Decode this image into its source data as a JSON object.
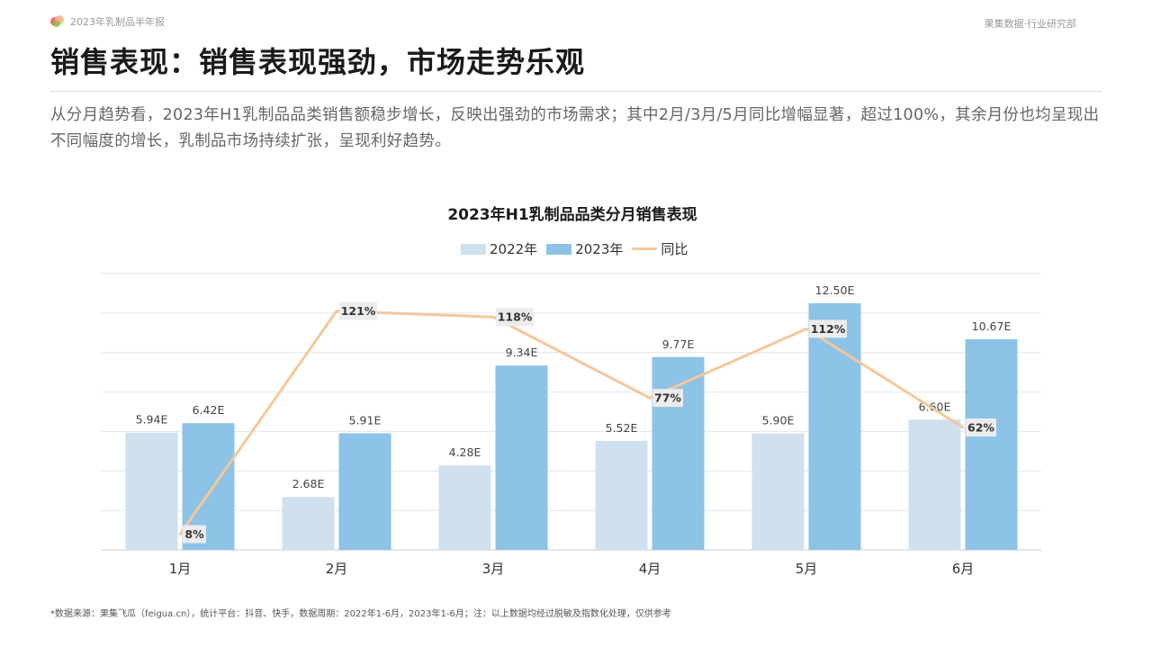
{
  "header": {
    "report_name": "2023年乳制品半年报",
    "org": "果集数据·行业研究部",
    "headline": "销售表现：销售表现强劲，市场走势乐观",
    "description": "从分月趋势看，2023年H1乳制品品类销售额稳步增长，反映出强劲的市场需求；其中2月/3月/5月同比增幅显著，超过100%，其余月份也均呈现出不同幅度的增长，乳制品市场持续扩张，呈现利好趋势。"
  },
  "footnote": "*数据来源：果集飞瓜（feigua.cn），统计平台：抖音、快手，数据周期：2022年1-6月，2023年1-6月；注：以上数据均经过脱敏及指数化处理，仅供参考",
  "chart_data": {
    "type": "bar",
    "title": "2023年H1乳制品品类分月销售表现",
    "categories": [
      "1月",
      "2月",
      "3月",
      "4月",
      "5月",
      "6月"
    ],
    "series": [
      {
        "name": "2022年",
        "type": "bar",
        "values": [
          5.94,
          2.68,
          4.28,
          5.52,
          5.9,
          6.6
        ],
        "labels": [
          "5.94E",
          "2.68E",
          "4.28E",
          "5.52E",
          "5.90E",
          "6.60E"
        ],
        "color": "#cfe0ee"
      },
      {
        "name": "2023年",
        "type": "bar",
        "values": [
          6.42,
          5.91,
          9.34,
          9.77,
          12.5,
          10.67
        ],
        "labels": [
          "6.42E",
          "5.91E",
          "9.34E",
          "9.77E",
          "12.50E",
          "10.67E"
        ],
        "color": "#8cc3e6"
      },
      {
        "name": "同比",
        "type": "line",
        "values": [
          8,
          121,
          118,
          77,
          112,
          62
        ],
        "labels": [
          "8%",
          "121%",
          "118%",
          "77%",
          "112%",
          "62%"
        ],
        "color": "#f5c79a"
      }
    ],
    "ylim": [
      0,
      14
    ],
    "y2lim": [
      0,
      140
    ],
    "grid": true,
    "legend_position": "top-center"
  }
}
